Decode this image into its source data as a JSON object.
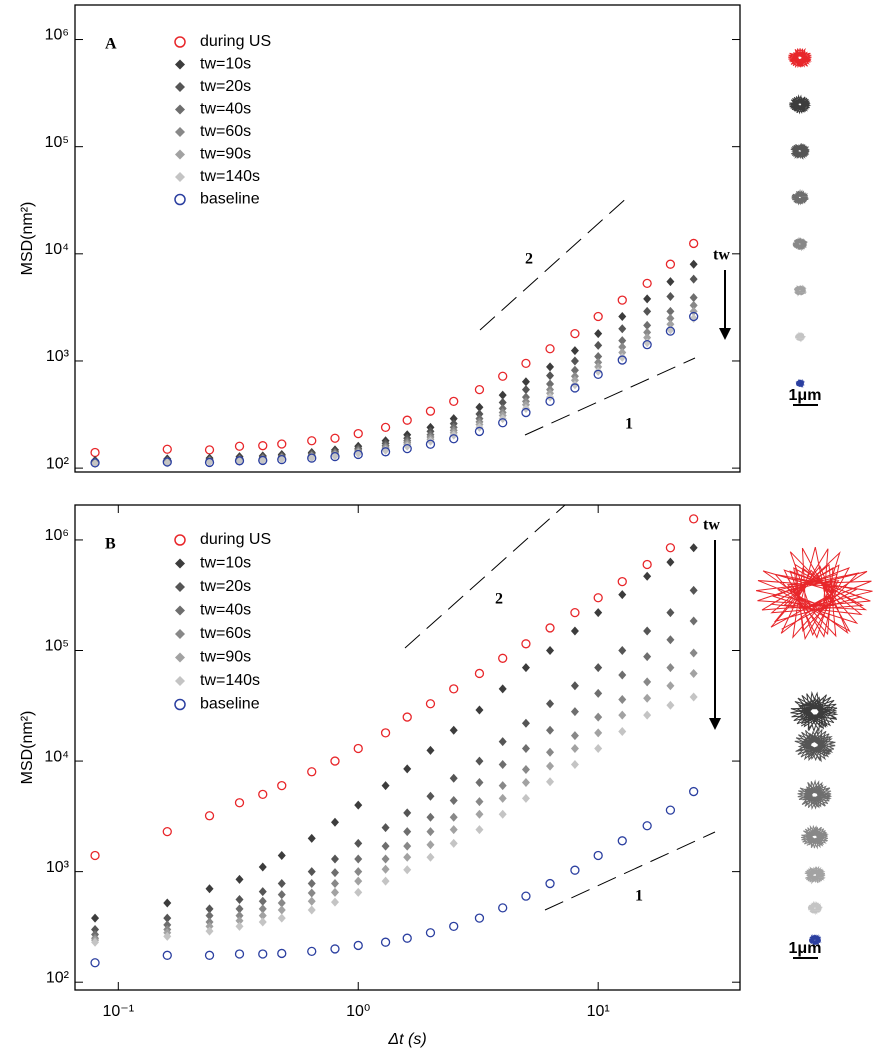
{
  "chart_data": [
    {
      "type": "scatter",
      "panel_label": "A",
      "ylabel": "MSD(nm²)",
      "log_x": true,
      "log_y": true,
      "xlim": [
        0.066,
        39
      ],
      "ylim": [
        92,
        2100000
      ],
      "yticks": [
        {
          "value": 100,
          "label": "10²"
        },
        {
          "value": 1000,
          "label": "10³"
        },
        {
          "value": 10000,
          "label": "10⁴"
        },
        {
          "value": 100000,
          "label": "10⁵"
        },
        {
          "value": 1000000,
          "label": "10⁶"
        }
      ],
      "x": [
        0.08,
        0.16,
        0.24,
        0.32,
        0.4,
        0.48,
        0.64,
        0.8,
        1,
        1.3,
        1.6,
        2,
        2.5,
        3.2,
        4,
        5,
        6.3,
        8,
        10,
        12.6,
        16,
        20,
        25
      ],
      "series": [
        {
          "name": "during US",
          "color": "#e8262a",
          "marker": "circle-open",
          "values": [
            140,
            150,
            148,
            160,
            162,
            168,
            180,
            190,
            210,
            240,
            280,
            340,
            420,
            540,
            720,
            950,
            1300,
            1800,
            2600,
            3700,
            5300,
            8000,
            12500
          ]
        },
        {
          "name": "tw=10s",
          "color": "#3c3c3c",
          "marker": "diamond",
          "values": [
            118,
            122,
            124,
            128,
            130,
            134,
            140,
            148,
            160,
            180,
            205,
            240,
            290,
            370,
            480,
            640,
            880,
            1250,
            1800,
            2600,
            3800,
            5500,
            8000
          ]
        },
        {
          "name": "tw=20s",
          "color": "#555555",
          "marker": "diamond",
          "values": [
            115,
            118,
            120,
            124,
            127,
            130,
            136,
            143,
            153,
            170,
            190,
            220,
            260,
            320,
            410,
            540,
            730,
            1000,
            1400,
            2000,
            2900,
            4000,
            5800
          ]
        },
        {
          "name": "tw=40s",
          "color": "#6e6e6e",
          "marker": "diamond",
          "values": [
            113,
            116,
            118,
            121,
            124,
            127,
            132,
            139,
            148,
            162,
            180,
            205,
            240,
            290,
            360,
            460,
            610,
            820,
            1100,
            1550,
            2150,
            2900,
            3900
          ]
        },
        {
          "name": "tw=60s",
          "color": "#888888",
          "marker": "diamond",
          "values": [
            112,
            115,
            117,
            120,
            122,
            125,
            130,
            136,
            144,
            157,
            173,
            195,
            225,
            270,
            330,
            420,
            540,
            720,
            970,
            1350,
            1850,
            2500,
            3300
          ]
        },
        {
          "name": "tw=90s",
          "color": "#a2a2a2",
          "marker": "diamond",
          "values": [
            111,
            113,
            115,
            118,
            120,
            123,
            128,
            133,
            141,
            152,
            167,
            186,
            214,
            255,
            310,
            390,
            500,
            660,
            880,
            1200,
            1650,
            2200,
            2900
          ]
        },
        {
          "name": "tw=140s",
          "color": "#c4c4c4",
          "marker": "diamond",
          "values": [
            110,
            112,
            114,
            116,
            118,
            121,
            125,
            130,
            137,
            147,
            160,
            178,
            203,
            240,
            290,
            360,
            460,
            600,
            800,
            1080,
            1480,
            1950,
            2500
          ]
        },
        {
          "name": "baseline",
          "color": "#2b3fa0",
          "marker": "circle-open",
          "values": [
            112,
            114,
            113,
            117,
            118,
            120,
            124,
            128,
            134,
            142,
            152,
            167,
            188,
            220,
            265,
            330,
            420,
            560,
            750,
            1020,
            1420,
            1900,
            2600
          ]
        }
      ],
      "slope_labels": [
        "2",
        "1"
      ],
      "arrow_label": "tw",
      "scale_bar": "1μm"
    },
    {
      "type": "scatter",
      "panel_label": "B",
      "ylabel": "MSD(nm²)",
      "xlabel": "Δt (s)",
      "log_x": true,
      "log_y": true,
      "xlim": [
        0.066,
        39
      ],
      "ylim": [
        85,
        2070000
      ],
      "xticks": [
        {
          "value": 0.1,
          "label": "10⁻¹"
        },
        {
          "value": 1,
          "label": "10⁰"
        },
        {
          "value": 10,
          "label": "10¹"
        }
      ],
      "yticks": [
        {
          "value": 100,
          "label": "10²"
        },
        {
          "value": 1000,
          "label": "10³"
        },
        {
          "value": 10000,
          "label": "10⁴"
        },
        {
          "value": 100000,
          "label": "10⁵"
        },
        {
          "value": 1000000,
          "label": "10⁶"
        }
      ],
      "x": [
        0.08,
        0.16,
        0.24,
        0.32,
        0.4,
        0.48,
        0.64,
        0.8,
        1,
        1.3,
        1.6,
        2,
        2.5,
        3.2,
        4,
        5,
        6.3,
        8,
        10,
        12.6,
        16,
        20,
        25
      ],
      "series": [
        {
          "name": "during US",
          "color": "#e8262a",
          "marker": "circle-open",
          "values": [
            1400,
            2300,
            3200,
            4200,
            5000,
            6000,
            8000,
            10000,
            13000,
            18000,
            25000,
            33000,
            45000,
            62000,
            85000,
            115000,
            160000,
            220000,
            300000,
            420000,
            600000,
            850000,
            1550000
          ]
        },
        {
          "name": "tw=10s",
          "color": "#3c3c3c",
          "marker": "diamond",
          "values": [
            380,
            520,
            700,
            850,
            1100,
            1400,
            2000,
            2800,
            4000,
            6000,
            8500,
            12500,
            19000,
            29000,
            45000,
            70000,
            100000,
            150000,
            220000,
            320000,
            470000,
            630000,
            850000
          ]
        },
        {
          "name": "tw=20s",
          "color": "#555555",
          "marker": "diamond",
          "values": [
            300,
            380,
            460,
            560,
            660,
            780,
            1000,
            1300,
            1800,
            2500,
            3400,
            4800,
            7000,
            10000,
            15000,
            22000,
            33000,
            48000,
            70000,
            100000,
            150000,
            220000,
            350000
          ]
        },
        {
          "name": "tw=40s",
          "color": "#6e6e6e",
          "marker": "diamond",
          "values": [
            270,
            330,
            400,
            460,
            540,
            620,
            780,
            980,
            1300,
            1700,
            2300,
            3100,
            4400,
            6400,
            9300,
            13000,
            19000,
            28000,
            41000,
            60000,
            88000,
            125000,
            185000
          ]
        },
        {
          "name": "tw=60s",
          "color": "#888888",
          "marker": "diamond",
          "values": [
            250,
            300,
            350,
            400,
            460,
            520,
            640,
            780,
            1000,
            1300,
            1700,
            2300,
            3100,
            4300,
            6000,
            8400,
            12000,
            17000,
            25000,
            36000,
            52000,
            70000,
            95000
          ]
        },
        {
          "name": "tw=90s",
          "color": "#a2a2a2",
          "marker": "diamond",
          "values": [
            240,
            280,
            320,
            360,
            400,
            450,
            540,
            650,
            820,
            1050,
            1350,
            1750,
            2400,
            3300,
            4600,
            6400,
            9000,
            13000,
            18000,
            26000,
            37000,
            48000,
            62000
          ]
        },
        {
          "name": "tw=140s",
          "color": "#c4c4c4",
          "marker": "diamond",
          "values": [
            230,
            260,
            290,
            320,
            350,
            380,
            450,
            530,
            650,
            820,
            1040,
            1350,
            1800,
            2400,
            3300,
            4600,
            6500,
            9300,
            13000,
            18500,
            26000,
            32000,
            38000
          ]
        },
        {
          "name": "baseline",
          "color": "#2b3fa0",
          "marker": "circle-open",
          "values": [
            150,
            175,
            175,
            180,
            180,
            182,
            190,
            200,
            215,
            230,
            250,
            280,
            320,
            380,
            470,
            600,
            780,
            1030,
            1400,
            1900,
            2600,
            3600,
            5300
          ]
        }
      ],
      "slope_labels": [
        "2",
        "1"
      ],
      "arrow_label": "tw",
      "scale_bar": "1μm"
    }
  ]
}
